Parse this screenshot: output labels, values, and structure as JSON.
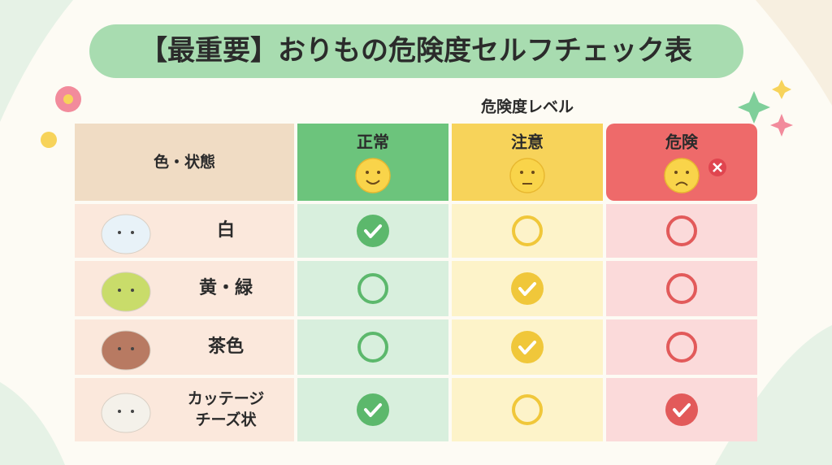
{
  "title": "【最重要】おりもの危険度セルフチェック表",
  "table": {
    "group_header": "危険度レベル",
    "label_header": "色・状態",
    "columns": [
      {
        "name": "正常",
        "color": "#6cc47c",
        "cell": "#d8efdd",
        "mark": "#5cb86c"
      },
      {
        "name": "注意",
        "color": "#f7d35a",
        "cell": "#fdf3c9",
        "mark": "#f0c73a"
      },
      {
        "name": "危険",
        "color": "#ee6a6a",
        "cell": "#fbdada",
        "mark": "#e25a5a"
      }
    ],
    "rows": [
      {
        "label": [
          "白"
        ],
        "blob": "#e8f2f8",
        "checked": [
          true,
          false,
          false
        ]
      },
      {
        "label": [
          "黄・緑"
        ],
        "blob": "#c9dc6a",
        "checked": [
          false,
          true,
          false
        ]
      },
      {
        "label": [
          "茶色"
        ],
        "blob": "#b87a62",
        "checked": [
          false,
          true,
          false
        ]
      },
      {
        "label": [
          "カッテージ",
          "チーズ状"
        ],
        "blob": "#f4f1ea",
        "checked": [
          true,
          false,
          true
        ]
      }
    ]
  }
}
